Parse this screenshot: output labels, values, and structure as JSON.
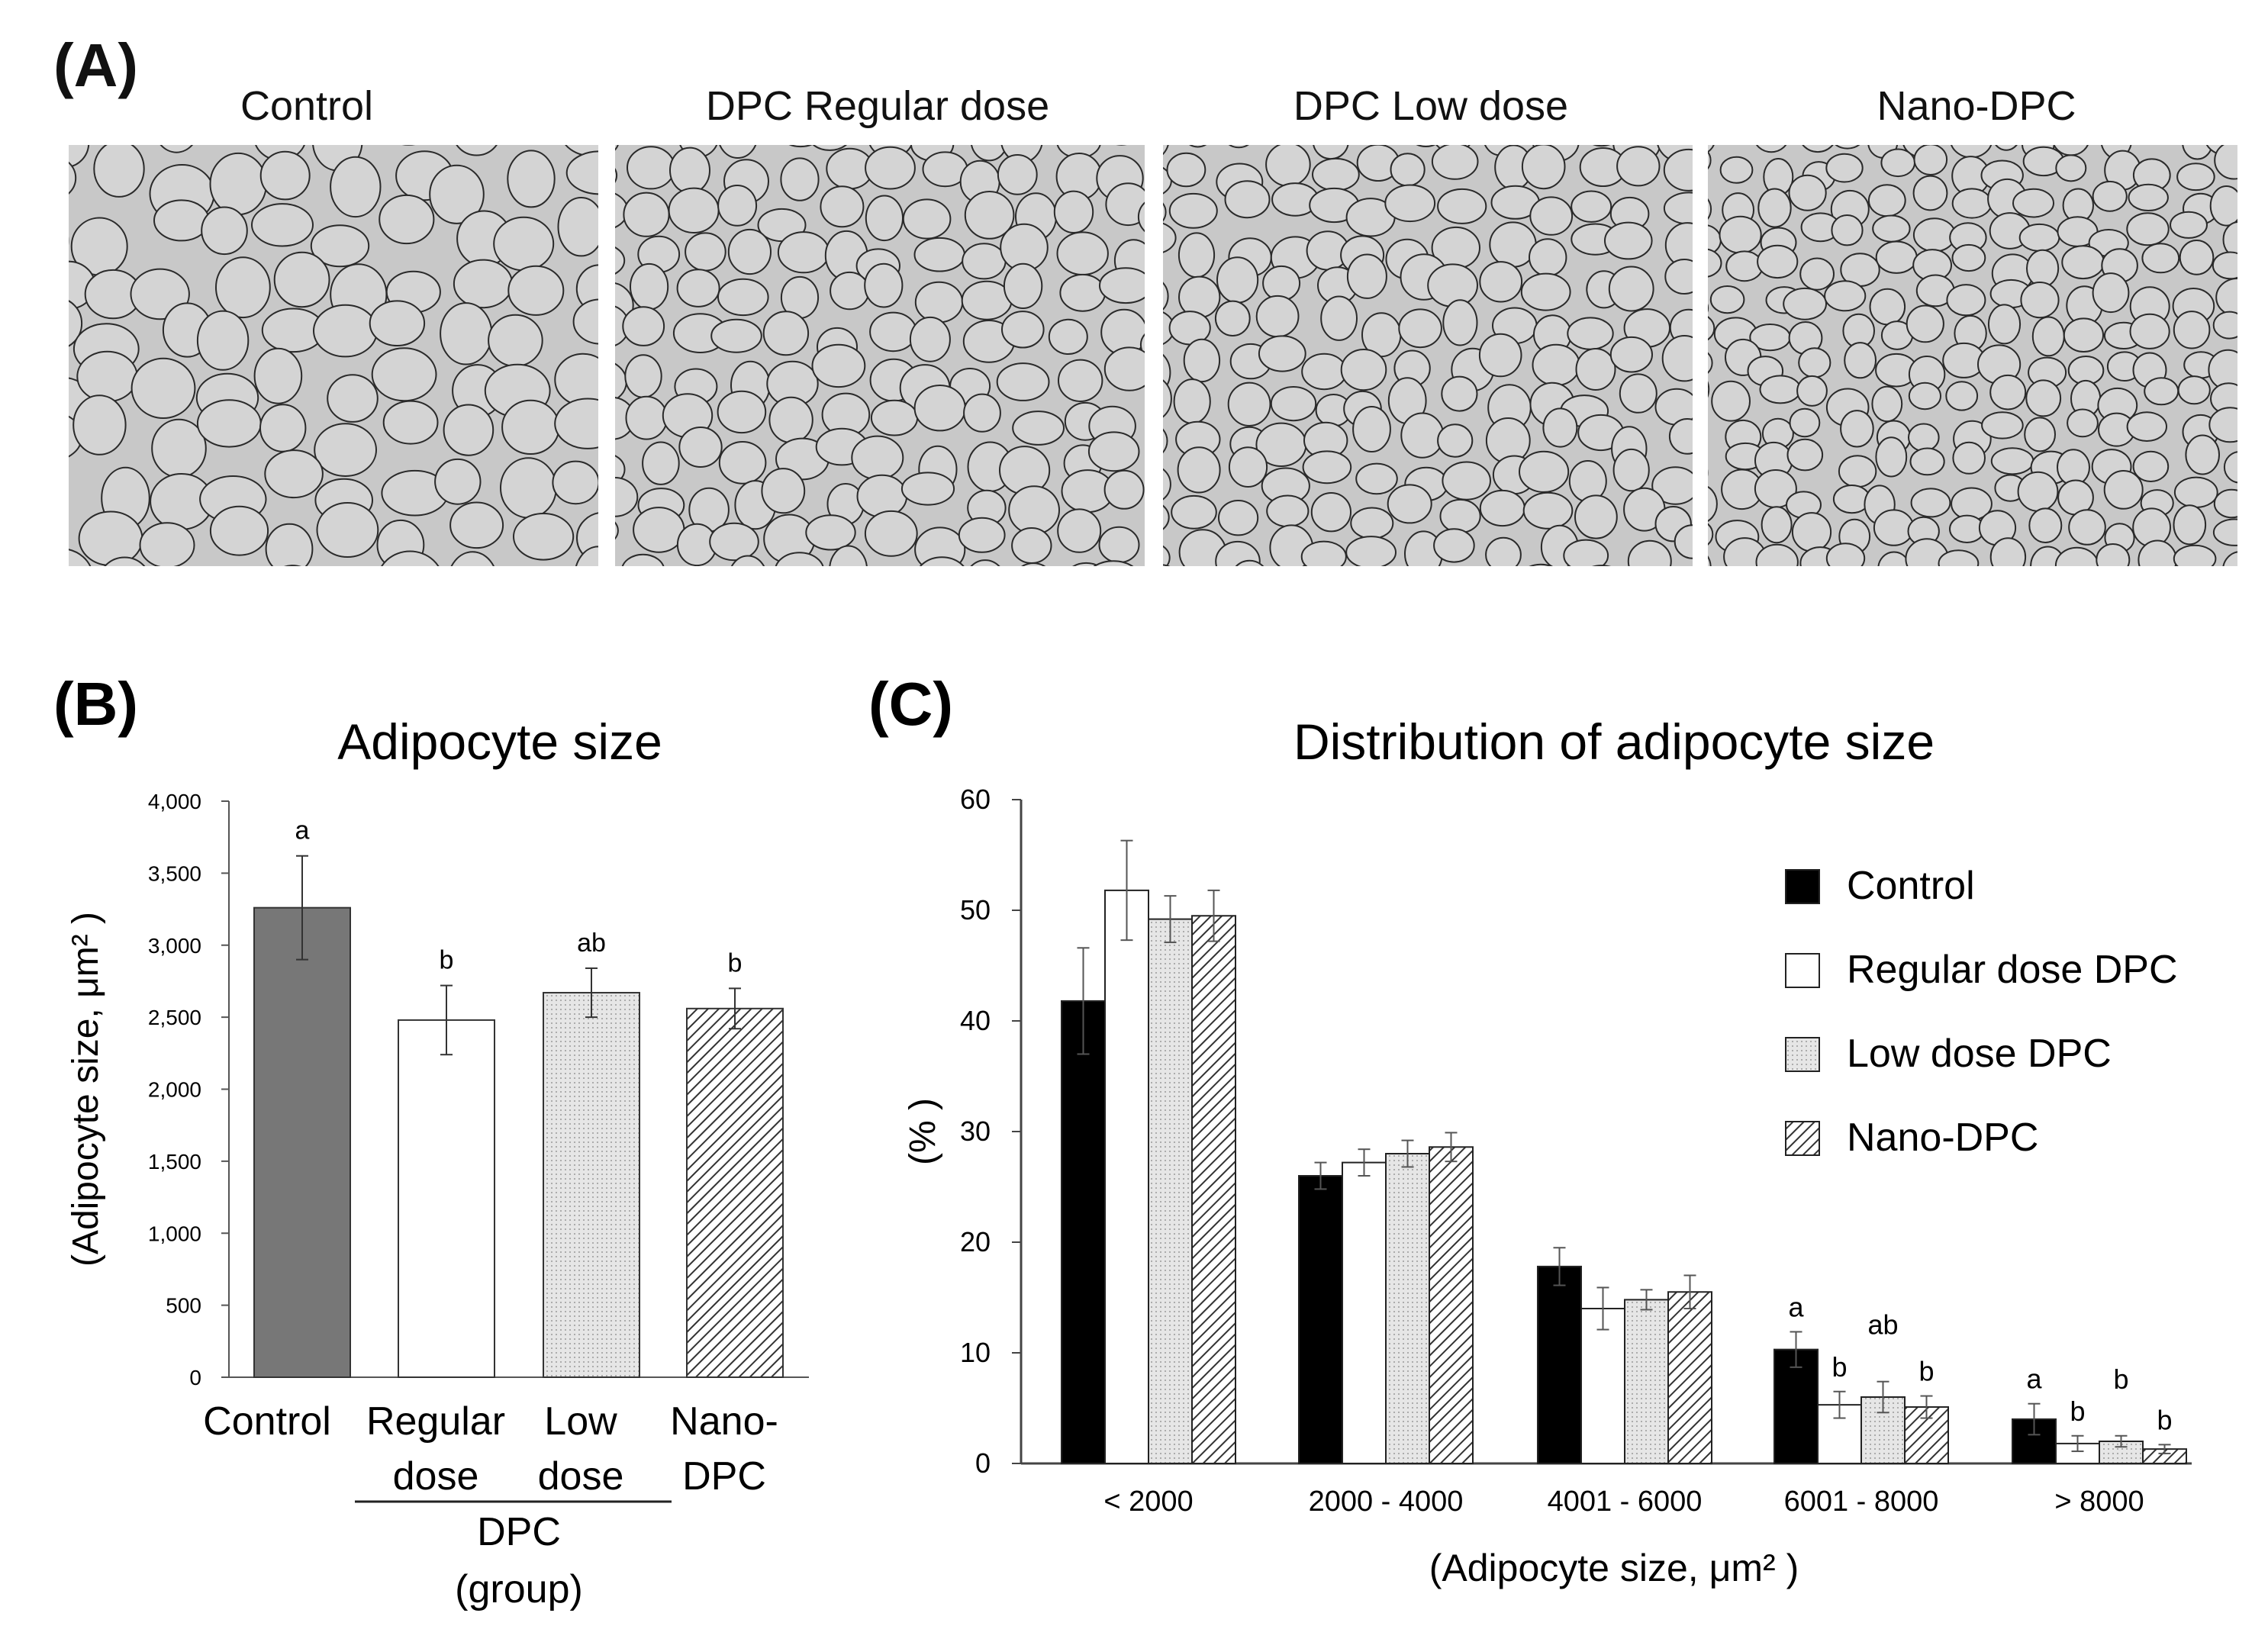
{
  "panel_a": {
    "label": "(A)",
    "images": [
      {
        "title": "Control"
      },
      {
        "title": "DPC Regular dose"
      },
      {
        "title": "DPC Low dose"
      },
      {
        "title": "Nano-DPC"
      }
    ]
  },
  "colors": {
    "control_b": "#777777",
    "control_c": "#000000",
    "regular": "#ffffff",
    "low": "#e6e6e6",
    "nano_hatch": "#333333",
    "micro_bg": "#c8c8c8",
    "micro_edge": "#2a2a2a"
  },
  "chart_data": [
    {
      "panel": "(B)",
      "type": "bar",
      "title": "Adipocyte size",
      "ylabel": "(Adipocyte size, μm² )",
      "xlabel": "(group)",
      "ylim": [
        0,
        4000
      ],
      "yticks": [
        0,
        500,
        1000,
        1500,
        2000,
        2500,
        3000,
        3500,
        4000
      ],
      "ytick_labels": [
        "0",
        "500",
        "1,000",
        "1,500",
        "2,000",
        "2,500",
        "3,000",
        "3,500",
        "4,000"
      ],
      "categories": [
        {
          "line1": "Control",
          "line2": ""
        },
        {
          "line1": "Regular",
          "line2": "dose"
        },
        {
          "line1": "Low",
          "line2": "dose"
        },
        {
          "line1": "Nano-",
          "line2": "DPC"
        }
      ],
      "values": [
        3260,
        2480,
        2670,
        2560
      ],
      "errors": [
        360,
        240,
        170,
        140
      ],
      "letters": [
        "a",
        "b",
        "ab",
        "b"
      ],
      "group_label": "DPC"
    },
    {
      "panel": "(C)",
      "type": "bar",
      "title": "Distribution of adipocyte size",
      "ylabel": "(% )",
      "xlabel": "(Adipocyte size, μm² )",
      "ylim": [
        0,
        60
      ],
      "yticks": [
        0,
        10,
        20,
        30,
        40,
        50,
        60
      ],
      "categories": [
        "< 2000",
        "2000 - 4000",
        "4001 - 6000",
        "6001 - 8000",
        "> 8000"
      ],
      "legend_position": "top-right",
      "series": [
        {
          "name": "Control",
          "values": [
            41.8,
            26.0,
            17.8,
            10.3,
            4.0
          ],
          "errors": [
            4.8,
            1.2,
            1.7,
            1.6,
            1.4
          ]
        },
        {
          "name": "Regular dose DPC",
          "values": [
            51.8,
            27.2,
            14.0,
            5.3,
            1.8
          ],
          "errors": [
            4.5,
            1.2,
            1.9,
            1.2,
            0.7
          ]
        },
        {
          "name": "Low dose DPC",
          "values": [
            49.2,
            28.0,
            14.8,
            6.0,
            2.0
          ],
          "errors": [
            2.1,
            1.2,
            0.9,
            1.4,
            0.5
          ]
        },
        {
          "name": "Nano-DPC",
          "values": [
            49.5,
            28.6,
            15.5,
            5.1,
            1.3
          ],
          "errors": [
            2.3,
            1.3,
            1.5,
            1.0,
            0.4
          ]
        }
      ],
      "letters": {
        "6001 - 8000": [
          "a",
          "b",
          "ab",
          "b"
        ],
        "> 8000": [
          "a",
          "b",
          "b",
          "b"
        ]
      }
    }
  ]
}
